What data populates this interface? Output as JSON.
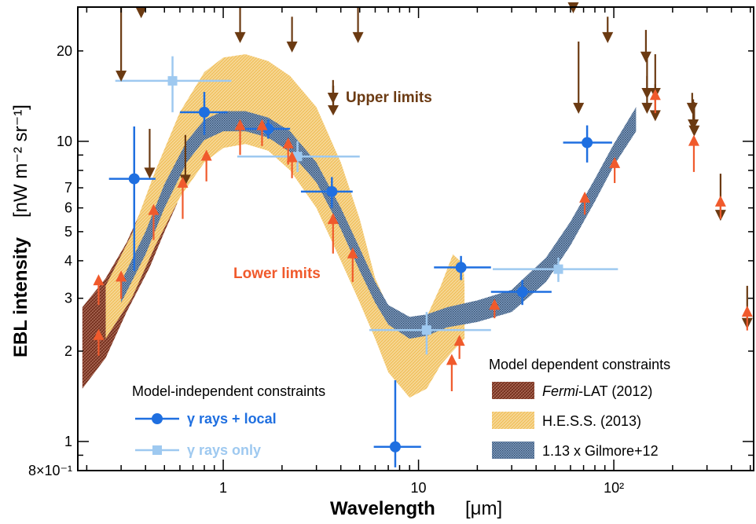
{
  "chart_data": {
    "type": "scatter",
    "xlabel": "Wavelength",
    "xunit": "[μm]",
    "ylabel": "EBL intensity",
    "yunit": "[nW m⁻² sr⁻¹]",
    "xscale": "log",
    "yscale": "log",
    "xlim": [
      0.18,
      520
    ],
    "ylim": [
      0.8,
      28
    ],
    "x_ticks": [
      {
        "value": 1,
        "label": "1"
      },
      {
        "value": 10,
        "label": "10"
      },
      {
        "value": 100,
        "label": "10²"
      }
    ],
    "y_ticks": [
      {
        "value": 0.8,
        "label": "8×10⁻¹"
      },
      {
        "value": 1,
        "label": "1"
      },
      {
        "value": 2,
        "label": "2"
      },
      {
        "value": 3,
        "label": "3"
      },
      {
        "value": 4,
        "label": "4"
      },
      {
        "value": 5,
        "label": "5"
      },
      {
        "value": 6,
        "label": "6"
      },
      {
        "value": 7,
        "label": "7"
      },
      {
        "value": 10,
        "label": "10"
      },
      {
        "value": 20,
        "label": "20"
      }
    ],
    "grid": false,
    "annotations": [
      {
        "text": "Upper limits",
        "color": "#6b3a12",
        "arrow": "down"
      },
      {
        "text": "Lower limits",
        "color": "#f05a2c",
        "arrow": "none"
      }
    ],
    "legends": {
      "model_independent": {
        "title": "Model-independent constraints",
        "entries": [
          {
            "label": "γ rays + local",
            "color": "#1f6fe0"
          },
          {
            "label": "γ rays only",
            "color": "#9ec9f0"
          }
        ]
      },
      "model_dependent": {
        "title": "Model dependent constraints",
        "entries": [
          {
            "label_italic": "Fermi",
            "label": "-LAT (2012)",
            "color": "#8b3a28"
          },
          {
            "label": "H.E.S.S. (2013)",
            "color": "#f2c46a"
          },
          {
            "label": "1.13 x Gilmore+12",
            "color": "#3a5a80"
          }
        ]
      }
    },
    "bands": [
      {
        "name": "Fermi-LAT (2012)",
        "color": "#8b3a28",
        "upper": [
          [
            0.19,
            2.8
          ],
          [
            0.25,
            3.5
          ],
          [
            0.32,
            4.6
          ],
          [
            0.42,
            6.8
          ],
          [
            0.5,
            8.8
          ],
          [
            0.58,
            11.5
          ]
        ],
        "lower": [
          [
            0.19,
            1.5
          ],
          [
            0.25,
            1.9
          ],
          [
            0.32,
            2.7
          ],
          [
            0.42,
            3.8
          ],
          [
            0.5,
            5.0
          ],
          [
            0.58,
            6.2
          ]
        ]
      },
      {
        "name": "H.E.S.S. (2013)",
        "color": "#f2c46a",
        "upper": [
          [
            0.25,
            3.3
          ],
          [
            0.34,
            4.9
          ],
          [
            0.45,
            8.0
          ],
          [
            0.6,
            12.5
          ],
          [
            0.8,
            17.0
          ],
          [
            1.0,
            19.0
          ],
          [
            1.3,
            19.5
          ],
          [
            1.7,
            18.5
          ],
          [
            2.2,
            16.5
          ],
          [
            3.0,
            13.0
          ],
          [
            4.0,
            8.5
          ],
          [
            5.0,
            5.5
          ],
          [
            6.0,
            3.5
          ],
          [
            7.0,
            2.8
          ],
          [
            9.0,
            2.5
          ],
          [
            11,
            2.6
          ],
          [
            13,
            3.3
          ],
          [
            15,
            4.2
          ],
          [
            17,
            3.9
          ],
          [
            17.2,
            3.3
          ]
        ],
        "lower": [
          [
            0.25,
            2.2
          ],
          [
            0.34,
            3.0
          ],
          [
            0.45,
            4.5
          ],
          [
            0.6,
            6.5
          ],
          [
            0.8,
            8.5
          ],
          [
            1.0,
            9.5
          ],
          [
            1.3,
            9.8
          ],
          [
            1.7,
            9.3
          ],
          [
            2.2,
            8.0
          ],
          [
            3.0,
            6.0
          ],
          [
            4.0,
            4.0
          ],
          [
            5.0,
            2.9
          ],
          [
            6.0,
            2.2
          ],
          [
            7.0,
            1.7
          ],
          [
            9.0,
            1.4
          ],
          [
            11,
            1.5
          ],
          [
            13,
            1.8
          ],
          [
            15,
            2.0
          ],
          [
            17.2,
            2.2
          ]
        ]
      },
      {
        "name": "1.13 x Gilmore+12",
        "color": "#3a5a80",
        "upper": [
          [
            0.3,
            3.4
          ],
          [
            0.4,
            5.0
          ],
          [
            0.5,
            7.2
          ],
          [
            0.65,
            10.0
          ],
          [
            0.8,
            11.8
          ],
          [
            1.0,
            12.6
          ],
          [
            1.3,
            12.6
          ],
          [
            1.7,
            12.0
          ],
          [
            2.2,
            10.8
          ],
          [
            3.0,
            8.5
          ],
          [
            4.0,
            6.0
          ],
          [
            5.0,
            4.4
          ],
          [
            6.0,
            3.4
          ],
          [
            7.0,
            2.85
          ],
          [
            9.0,
            2.6
          ],
          [
            11,
            2.65
          ],
          [
            14,
            2.8
          ],
          [
            20,
            2.95
          ],
          [
            30,
            3.2
          ],
          [
            45,
            4.1
          ],
          [
            60,
            5.4
          ],
          [
            80,
            7.5
          ],
          [
            100,
            9.8
          ],
          [
            130,
            13.0
          ]
        ],
        "lower": [
          [
            0.3,
            2.9
          ],
          [
            0.4,
            4.2
          ],
          [
            0.5,
            6.0
          ],
          [
            0.65,
            8.5
          ],
          [
            0.8,
            10.1
          ],
          [
            1.0,
            10.8
          ],
          [
            1.3,
            10.8
          ],
          [
            1.7,
            10.3
          ],
          [
            2.2,
            9.2
          ],
          [
            3.0,
            7.3
          ],
          [
            4.0,
            5.1
          ],
          [
            5.0,
            3.7
          ],
          [
            6.0,
            2.9
          ],
          [
            7.0,
            2.45
          ],
          [
            9.0,
            2.2
          ],
          [
            11,
            2.25
          ],
          [
            14,
            2.4
          ],
          [
            20,
            2.5
          ],
          [
            30,
            2.7
          ],
          [
            45,
            3.4
          ],
          [
            60,
            4.5
          ],
          [
            80,
            6.3
          ],
          [
            100,
            8.3
          ],
          [
            130,
            10.8
          ]
        ]
      }
    ],
    "series": [
      {
        "name": "γ rays + local",
        "color": "#1f6fe0",
        "marker": "circle",
        "points": [
          {
            "x": 0.35,
            "y": 7.5,
            "xlo": 0.26,
            "xhi": 0.45,
            "ylo": 3.7,
            "yhi": 11.2
          },
          {
            "x": 0.8,
            "y": 12.5,
            "xlo": 0.6,
            "xhi": 1.05,
            "ylo": 10.5,
            "yhi": 14.6
          },
          {
            "x": 1.7,
            "y": 11.0,
            "xlo": 1.2,
            "xhi": 2.2,
            "ylo": 10.2,
            "yhi": 11.8
          },
          {
            "x": 3.6,
            "y": 6.8,
            "xlo": 2.5,
            "xhi": 4.6,
            "ylo": 6.0,
            "yhi": 7.6
          },
          {
            "x": 7.6,
            "y": 0.96,
            "xlo": 5.9,
            "xhi": 10.3,
            "ylo": 0.82,
            "yhi": 1.6
          },
          {
            "x": 16.5,
            "y": 3.8,
            "xlo": 12.0,
            "xhi": 23.5,
            "ylo": 3.45,
            "yhi": 4.15
          },
          {
            "x": 34,
            "y": 3.15,
            "xlo": 23.5,
            "xhi": 48,
            "ylo": 2.85,
            "yhi": 3.45
          },
          {
            "x": 73,
            "y": 9.9,
            "xlo": 55,
            "xhi": 98,
            "ylo": 8.5,
            "yhi": 11.3
          }
        ]
      },
      {
        "name": "γ rays only",
        "color": "#9ec9f0",
        "marker": "square",
        "points": [
          {
            "x": 0.55,
            "y": 15.9,
            "xlo": 0.28,
            "xhi": 1.1,
            "ylo": 12.5,
            "yhi": 19.2
          },
          {
            "x": 2.4,
            "y": 8.9,
            "xlo": 1.18,
            "xhi": 5.0,
            "ylo": 7.9,
            "yhi": 10.0
          },
          {
            "x": 11,
            "y": 2.35,
            "xlo": 5.6,
            "xhi": 23.5,
            "ylo": 1.95,
            "yhi": 2.7
          },
          {
            "x": 52,
            "y": 3.75,
            "xlo": 24,
            "xhi": 105,
            "ylo": 3.4,
            "yhi": 4.1
          }
        ]
      },
      {
        "name": "Upper limits",
        "color": "#6b3a12",
        "marker": "down-arrow",
        "points": [
          {
            "x": 0.3,
            "y": 16.0,
            "from": 28
          },
          {
            "x": 0.38,
            "y": 26.0,
            "from": 28
          },
          {
            "x": 0.42,
            "y": 7.6,
            "from": 11.0
          },
          {
            "x": 0.64,
            "y": 7.2,
            "from": 10.5
          },
          {
            "x": 1.22,
            "y": 21.5,
            "from": 28
          },
          {
            "x": 2.25,
            "y": 20.0,
            "from": 26.0
          },
          {
            "x": 3.65,
            "y": 13.5,
            "from": 16.0
          },
          {
            "x": 4.9,
            "y": 21.5,
            "from": 28
          },
          {
            "x": 62,
            "y": 27.0,
            "from": 28
          },
          {
            "x": 66,
            "y": 12.5,
            "from": 21.5
          },
          {
            "x": 93,
            "y": 21.5,
            "from": 26.0
          },
          {
            "x": 146,
            "y": 18.5,
            "from": 23.5
          },
          {
            "x": 148,
            "y": 14.0,
            "from": 19.0
          },
          {
            "x": 148,
            "y": 12.5,
            "from": 16.5
          },
          {
            "x": 163,
            "y": 14.0,
            "from": 19.5
          },
          {
            "x": 163,
            "y": 11.8,
            "from": 15.5
          },
          {
            "x": 252,
            "y": 12.5,
            "from": 14.5
          },
          {
            "x": 255,
            "y": 11.0,
            "from": 13.8
          },
          {
            "x": 258,
            "y": 10.5,
            "from": 13.5
          },
          {
            "x": 352,
            "y": 5.5,
            "from": 7.8
          },
          {
            "x": 482,
            "y": 2.4,
            "from": 3.3
          }
        ]
      },
      {
        "name": "Lower limits",
        "color": "#f05a2c",
        "marker": "up-arrow",
        "points": [
          {
            "x": 0.23,
            "y": 2.1,
            "to": 2.3
          },
          {
            "x": 0.23,
            "y": 3.1,
            "to": 3.5
          },
          {
            "x": 0.3,
            "y": 3.25,
            "to": 3.6
          },
          {
            "x": 0.44,
            "y": 5.1,
            "to": 6.0
          },
          {
            "x": 0.62,
            "y": 6.0,
            "to": 7.4
          },
          {
            "x": 0.82,
            "y": 8.0,
            "to": 9.1
          },
          {
            "x": 1.22,
            "y": 9.8,
            "to": 11.5
          },
          {
            "x": 1.58,
            "y": 10.5,
            "to": 11.5
          },
          {
            "x": 2.15,
            "y": 9.1,
            "to": 10.0
          },
          {
            "x": 2.25,
            "y": 8.2,
            "to": 9.0
          },
          {
            "x": 3.65,
            "y": 4.6,
            "to": 5.6
          },
          {
            "x": 4.6,
            "y": 3.7,
            "to": 4.3
          },
          {
            "x": 14.8,
            "y": 1.6,
            "to": 1.9
          },
          {
            "x": 16.2,
            "y": 2.05,
            "to": 2.2
          },
          {
            "x": 24.5,
            "y": 2.8,
            "to": 2.9
          },
          {
            "x": 71,
            "y": 6.2,
            "to": 6.6
          },
          {
            "x": 101,
            "y": 7.9,
            "to": 8.6
          },
          {
            "x": 163,
            "y": 13.5,
            "to": 14.5
          },
          {
            "x": 257,
            "y": 8.6,
            "to": 10.2
          },
          {
            "x": 352,
            "y": 6.0,
            "to": 6.4
          },
          {
            "x": 482,
            "y": 2.55,
            "to": 2.75
          }
        ]
      }
    ]
  }
}
